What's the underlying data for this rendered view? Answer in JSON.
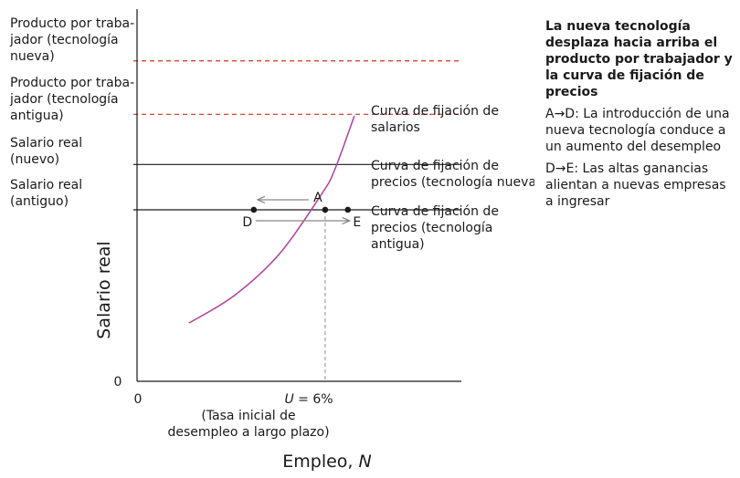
{
  "chart_data": {
    "type": "line",
    "xlabel": "Empleo, N",
    "ylabel": "Salario real",
    "x_origin_label": "0",
    "y_origin_label": "0",
    "y_levels": [
      {
        "id": "prod_new",
        "label_lines": [
          "Producto por traba-",
          "jador (tecnología",
          "nueva)"
        ],
        "value": 0.99,
        "style": "dashed",
        "color": "#cc3322"
      },
      {
        "id": "prod_old",
        "label_lines": [
          "Producto por traba-",
          "jador (tecnología",
          "antigua)"
        ],
        "value": 0.825,
        "style": "dashed",
        "color": "#cc3322"
      },
      {
        "id": "wage_new",
        "label_lines": [
          "Salario real",
          "(nuevo)"
        ],
        "value": 0.67,
        "style": "solid",
        "color": "#1a1a1a"
      },
      {
        "id": "wage_old",
        "label_lines": [
          "Salario real",
          "(antiguo)"
        ],
        "value": 0.53,
        "style": "solid",
        "color": "#1a1a1a"
      }
    ],
    "series": [
      {
        "name": "Curva de fijación de salarios",
        "label_lines": [
          "Curva de fijación de",
          "salarios"
        ],
        "color": "#b0409c",
        "kind": "wage_setting_curve",
        "points": [
          [
            0.16,
            0.18
          ],
          [
            0.3,
            0.265
          ],
          [
            0.44,
            0.395
          ],
          [
            0.57,
            0.58
          ],
          [
            0.61,
            0.655
          ],
          [
            0.67,
            0.82
          ]
        ]
      },
      {
        "name": "Curva de fijación de precios (tecnología nueva)",
        "label_lines": [
          "Curva de fijación de",
          "precios (tecnología nueva)"
        ],
        "color": "#1a1a1a",
        "kind": "price_setting_new",
        "y": 0.67
      },
      {
        "name": "Curva de fijación de precios (tecnología antigua)",
        "label_lines": [
          "Curva de fijación de",
          "precios (tecnología",
          "antigua)"
        ],
        "color": "#1a1a1a",
        "kind": "price_setting_old",
        "y": 0.53
      }
    ],
    "points": [
      {
        "label": "A",
        "x": 0.58,
        "y": 0.53
      },
      {
        "label": "D",
        "x": 0.36,
        "y": 0.53
      },
      {
        "label": "E",
        "x": 0.65,
        "y": 0.53
      }
    ],
    "arrows": [
      {
        "from": "A",
        "to": "D",
        "color": "#888888"
      },
      {
        "from": "D",
        "to": "E",
        "color": "#888888"
      }
    ],
    "vline": {
      "x": 0.58,
      "label_lines": [
        "U = 6%",
        "(Tasa inicial de",
        "desempleo a largo plazo)"
      ]
    },
    "xlim": [
      0,
      1
    ],
    "ylim": [
      0,
      1.15
    ]
  },
  "panel": {
    "title": "La nueva tecnología desplaza hacia arriba el producto por trabajador y la curva de fijación de precios",
    "notes": [
      "A→D: La introducción de una nueva tecnología conduce a un aumento del desempleo",
      "D→E: Las altas ganancias alientan a nuevas empresas a ingresar"
    ]
  },
  "colors": {
    "ink": "#1a1a1a",
    "dashed": "#cc3322",
    "curve": "#b0409c",
    "arrow": "#888888",
    "dropline": "#999999"
  }
}
